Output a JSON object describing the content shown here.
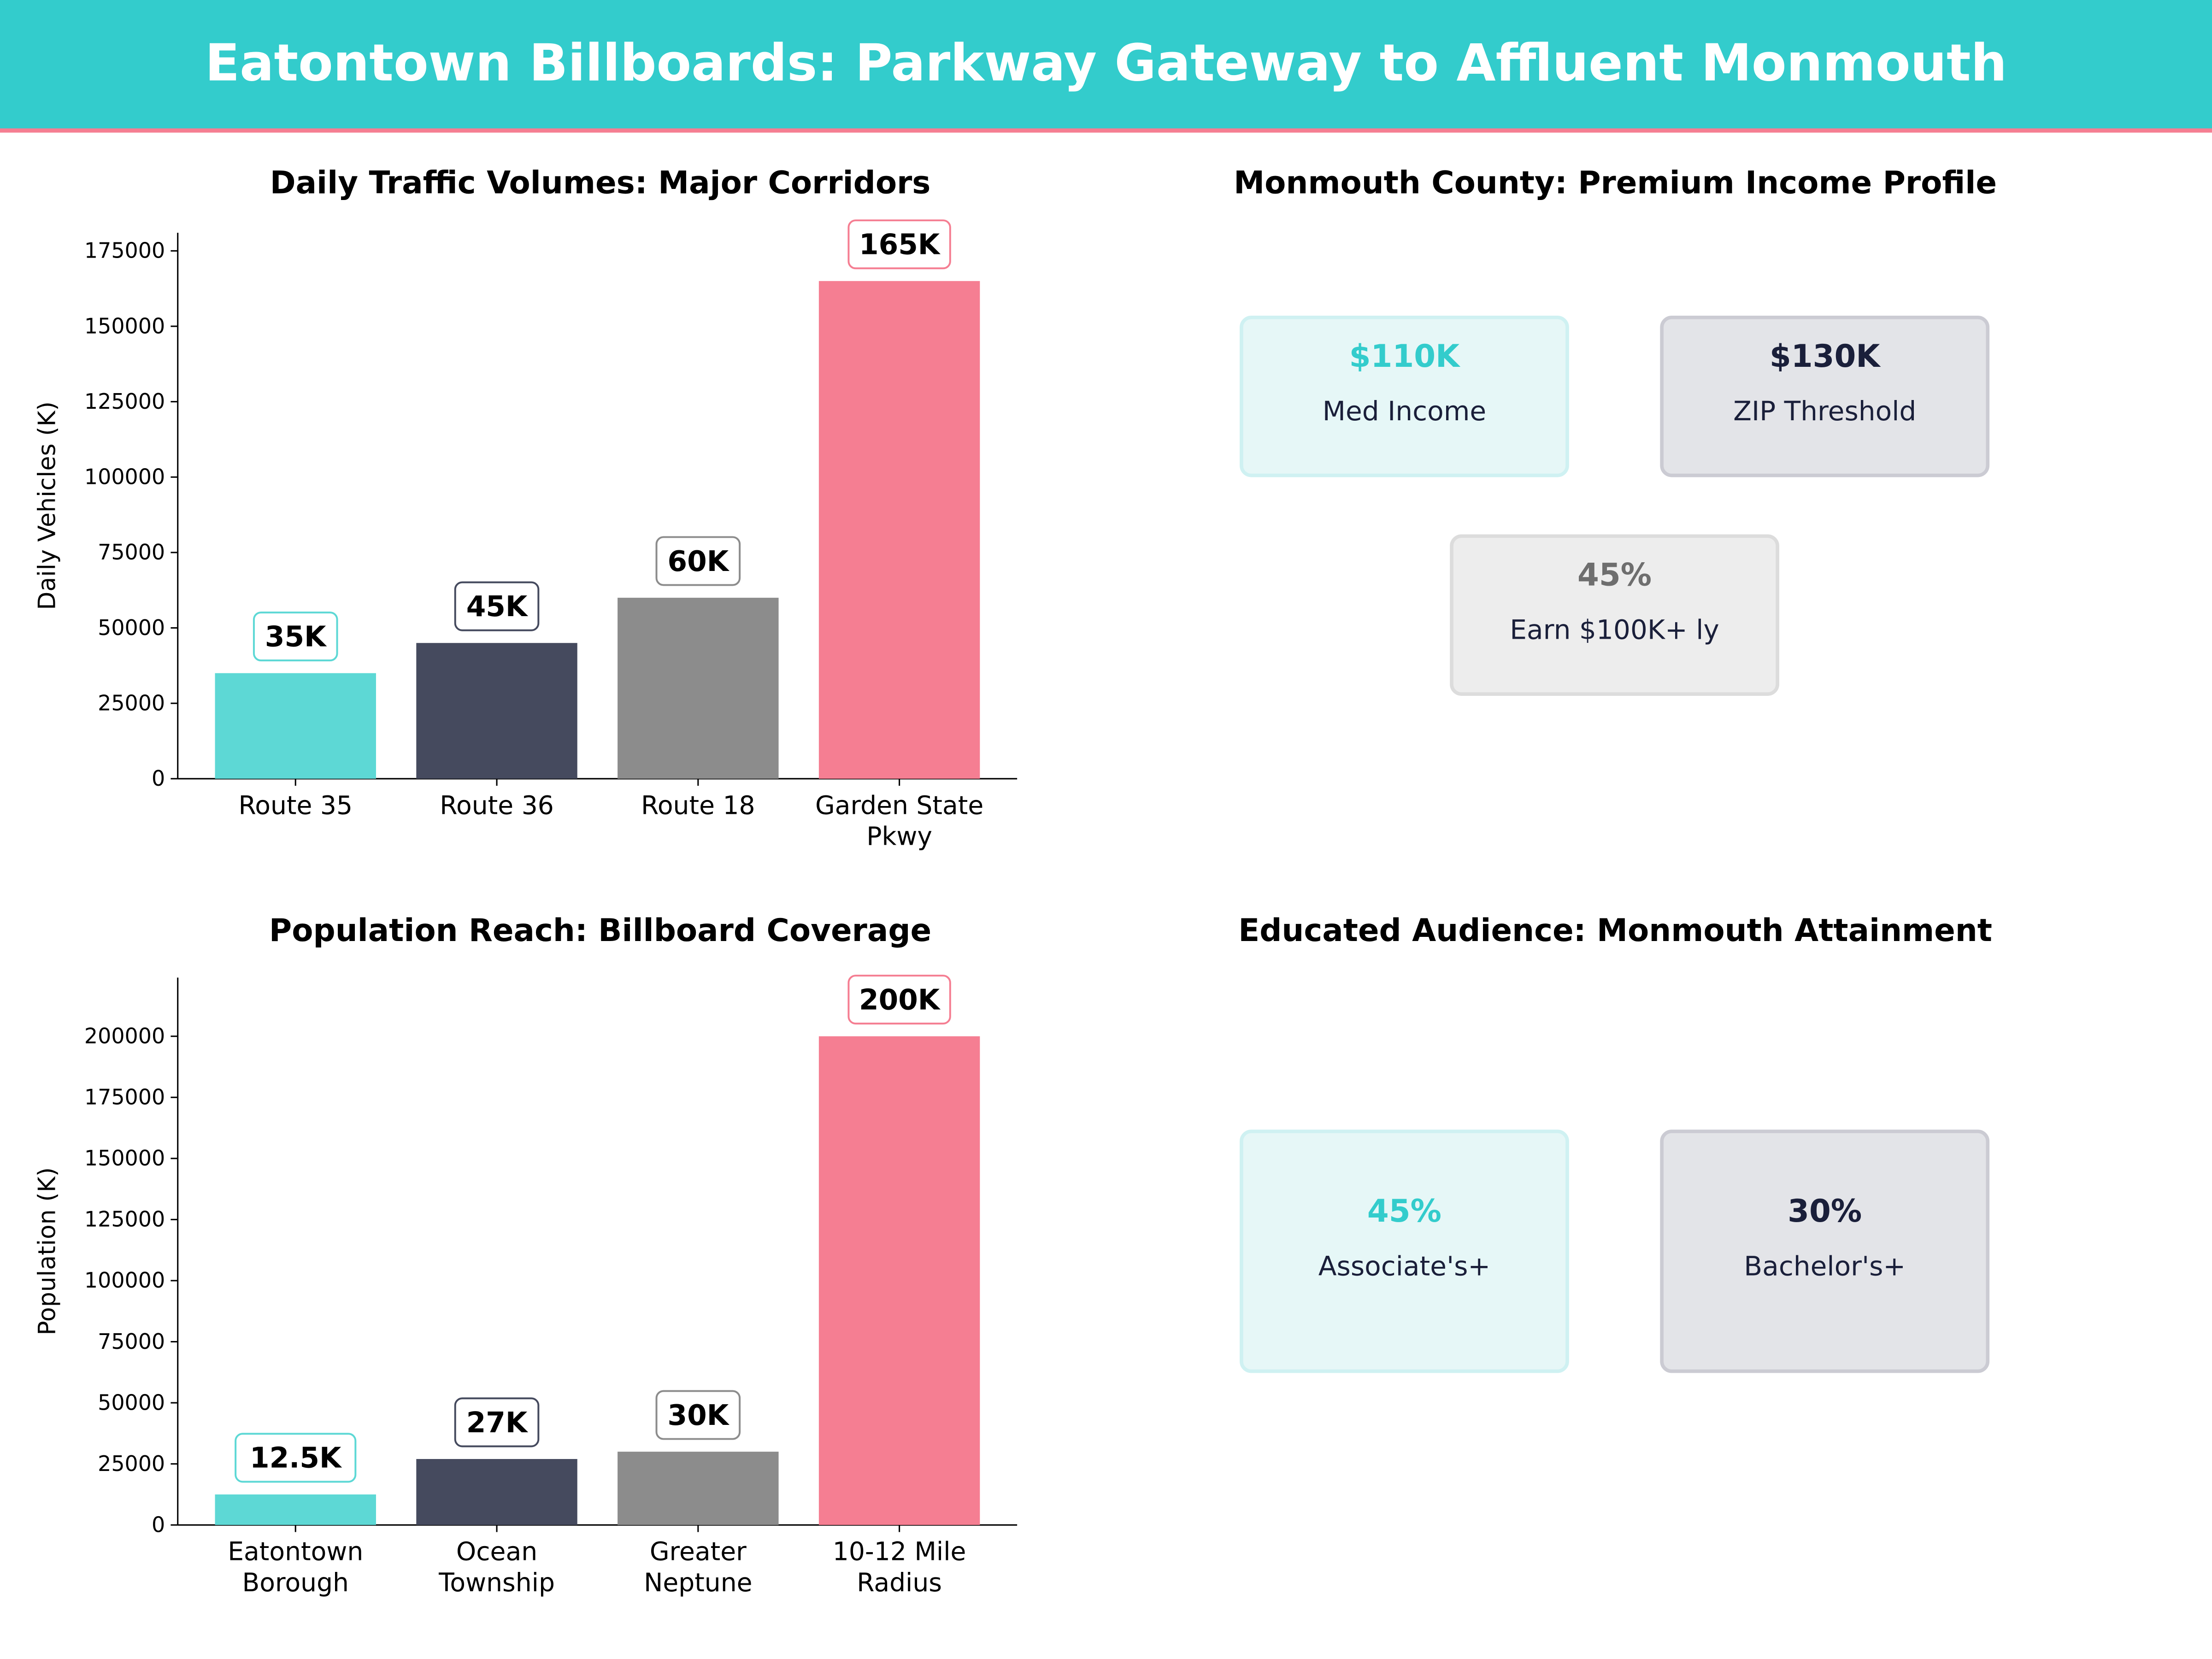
{
  "header": {
    "title": "Eatontown Billboards: Parkway Gateway to Affluent Monmouth",
    "bg": "#33CCCC",
    "accent_line": "#F57E92"
  },
  "colors": [
    "#5DD8D5",
    "#454A5E",
    "#8C8C8C",
    "#F57E92"
  ],
  "chart_data": [
    {
      "type": "bar",
      "title": "Daily Traffic Volumes: Major Corridors",
      "ylabel": "Daily Vehicles (K)",
      "categories": [
        [
          "Route 35"
        ],
        [
          "Route 36"
        ],
        [
          "Route 18"
        ],
        [
          "Garden State",
          "Pkwy"
        ]
      ],
      "values": [
        35000,
        45000,
        60000,
        165000
      ],
      "data_labels": [
        "35K",
        "45K",
        "60K",
        "165K"
      ],
      "yticks": [
        0,
        25000,
        50000,
        75000,
        100000,
        125000,
        150000,
        175000
      ],
      "ylim": [
        0,
        181000
      ],
      "grid": false
    },
    {
      "type": "bar",
      "title": "Population Reach: Billboard Coverage",
      "ylabel": "Population (K)",
      "categories": [
        [
          "Eatontown",
          "Borough"
        ],
        [
          "Ocean",
          "Township"
        ],
        [
          "Greater",
          "Neptune"
        ],
        [
          "10-12 Mile",
          "Radius"
        ]
      ],
      "values": [
        12500,
        27000,
        30000,
        200000
      ],
      "data_labels": [
        "12.5K",
        "27K",
        "30K",
        "200K"
      ],
      "yticks": [
        0,
        25000,
        50000,
        75000,
        100000,
        125000,
        150000,
        175000,
        200000
      ],
      "ylim": [
        0,
        224000
      ],
      "grid": false
    }
  ],
  "income": {
    "title": "Monmouth County: Premium Income Profile",
    "cards": [
      {
        "value": "$110K",
        "label": "Med Income",
        "value_color": "#33CCCC",
        "fill": "#E6F7F7",
        "border": "#CFF1F2"
      },
      {
        "value": "$130K",
        "label": "ZIP Threshold",
        "value_color": "#1A1F3A",
        "fill": "#E3E4E8",
        "border": "#CBCBD3"
      },
      {
        "value": "45%",
        "label": "Earn $100K+ ly",
        "value_color": "#6E6E6E",
        "fill": "#EDEDED",
        "border": "#DCDCDC"
      }
    ]
  },
  "education": {
    "title": "Educated Audience: Monmouth Attainment",
    "cards": [
      {
        "value": "45%",
        "label": "Associate's+",
        "value_color": "#33CCCC",
        "fill": "#E6F7F7",
        "border": "#CFF1F2"
      },
      {
        "value": "30%",
        "label": "Bachelor's+",
        "value_color": "#1A1F3A",
        "fill": "#E3E4E8",
        "border": "#CBCBD3"
      }
    ]
  }
}
